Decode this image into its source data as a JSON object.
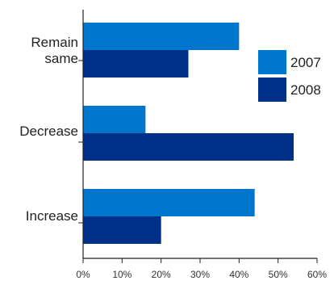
{
  "chart_data": {
    "type": "bar",
    "orientation": "horizontal",
    "title": "",
    "xlabel": "",
    "ylabel": "",
    "categories": [
      "Remain same",
      "Decrease",
      "Increase"
    ],
    "category_lines": [
      [
        "Remain",
        "same"
      ],
      [
        "Decrease"
      ],
      [
        "Increase"
      ]
    ],
    "series": [
      {
        "name": "2007",
        "values": [
          40,
          16,
          44
        ],
        "color": "#0077cc"
      },
      {
        "name": "2008",
        "values": [
          27,
          54,
          20
        ],
        "color": "#003087"
      }
    ],
    "xlim": [
      0,
      60
    ],
    "ticks": [
      0,
      10,
      20,
      30,
      40,
      50,
      60
    ],
    "tick_labels": [
      "0%",
      "10%",
      "20%",
      "30%",
      "40%",
      "50%",
      "60%"
    ],
    "grid": false,
    "legend_position": "top-right"
  }
}
